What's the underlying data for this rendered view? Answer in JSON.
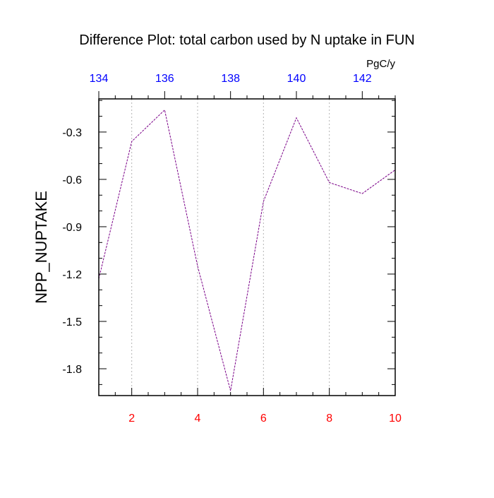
{
  "chart_data": {
    "type": "line",
    "title": "Difference Plot: total carbon used by N uptake in FUN",
    "ylabel": "NPP_NUPTAKE",
    "top_axis_unit": "PgC/y",
    "x": [
      1,
      2,
      3,
      4,
      5,
      6,
      7,
      8,
      9,
      10
    ],
    "series": [
      {
        "values": [
          -1.23,
          -0.36,
          -0.16,
          -1.15,
          -1.94,
          -0.74,
          -0.21,
          -0.62,
          -0.69,
          -0.54
        ]
      }
    ],
    "xlim": [
      1,
      10
    ],
    "ylim": [
      -1.97,
      -0.09
    ],
    "bottom_ticks": [
      "2",
      "4",
      "6",
      "8",
      "10"
    ],
    "top_ticks": [
      "134",
      "136",
      "138",
      "140",
      "142"
    ],
    "top_xlim": [
      134,
      143
    ],
    "y_ticks": [
      "-0.3",
      "-0.6",
      "-0.9",
      "-1.2",
      "-1.5",
      "-1.8"
    ],
    "grid": "vertical dashed at bottom ticks",
    "colors": {
      "line": "#7a0088",
      "bottom_tick_labels": "#ff0000",
      "top_tick_labels": "#0000ff",
      "axes": "#000000",
      "grid": "#b4b4b4"
    }
  }
}
